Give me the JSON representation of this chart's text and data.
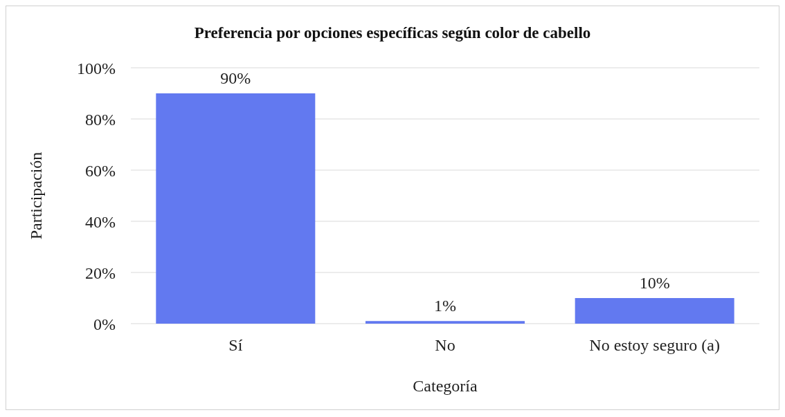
{
  "chart_data": {
    "type": "bar",
    "title": "Preferencia por opciones específicas según color de cabello",
    "xlabel": "Categoría",
    "ylabel": "Participación",
    "categories": [
      "Sí",
      "No",
      "No estoy seguro (a)"
    ],
    "values": [
      90,
      1,
      10
    ],
    "color": "#6279f0",
    "value_labels": [
      "90%",
      "1%",
      "10%"
    ],
    "ylim": [
      0,
      100
    ],
    "yticks": [
      {
        "value": 0,
        "label": "0%"
      },
      {
        "value": 20,
        "label": "20%"
      },
      {
        "value": 40,
        "label": "40%"
      },
      {
        "value": 60,
        "label": "60%"
      },
      {
        "value": 80,
        "label": "80%"
      },
      {
        "value": 100,
        "label": "100%"
      }
    ],
    "grid": "y",
    "legend": false
  }
}
